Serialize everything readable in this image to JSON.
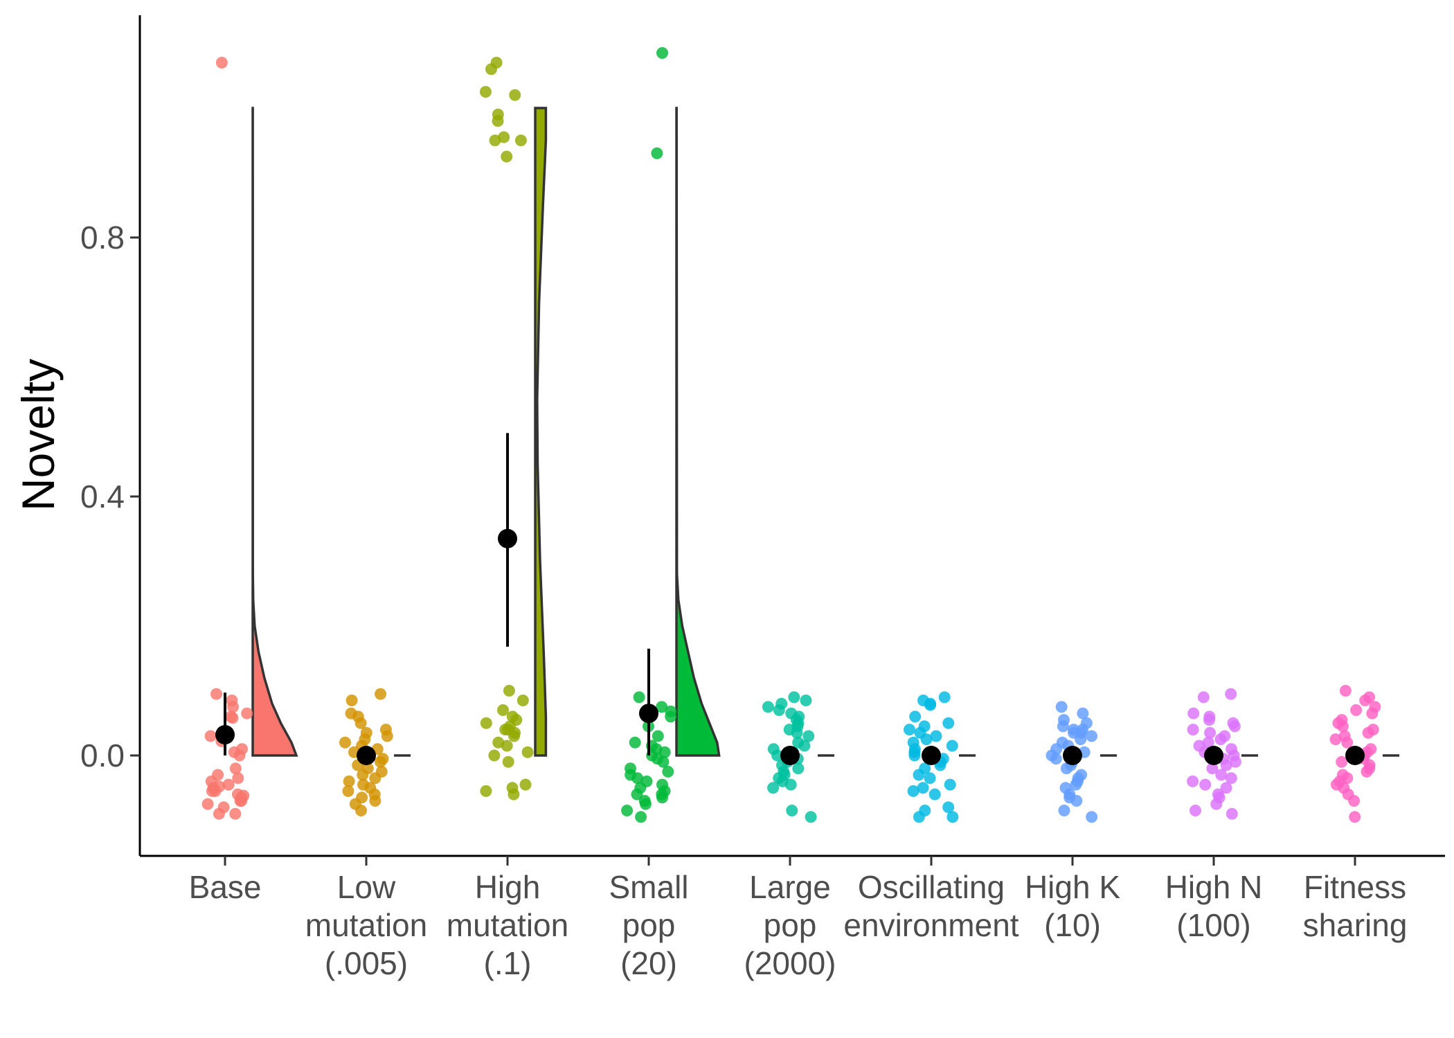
{
  "chart_data": {
    "type": "raincloud",
    "title": "",
    "xlabel": "",
    "ylabel": "Novelty",
    "ylim": [
      -0.15,
      1.15
    ],
    "yticks": [
      0.0,
      0.4,
      0.8
    ],
    "ytick_labels": [
      "0.0",
      "0.4",
      "0.8"
    ],
    "grid": false,
    "legend": "none",
    "categories": [
      {
        "label_lines": [
          "Base"
        ],
        "color": "#F8766D",
        "mean": 0.032,
        "ci": [
          0.0,
          0.097
        ],
        "points": [
          0.085,
          0.095,
          0.06,
          0.065,
          0.075,
          0.058,
          0.03,
          0.01,
          0.005,
          0.0,
          -0.02,
          -0.03,
          -0.035,
          -0.04,
          -0.045,
          -0.05,
          -0.055,
          -0.06,
          -0.065,
          -0.07,
          -0.075,
          -0.08,
          -0.09,
          -0.09,
          -0.055,
          -0.048,
          -0.062,
          -0.07,
          0.022,
          1.07
        ],
        "density": [
          [
            0.0,
            0.09
          ],
          [
            0.02,
            0.08
          ],
          [
            0.05,
            0.058
          ],
          [
            0.08,
            0.04
          ],
          [
            0.12,
            0.024
          ],
          [
            0.16,
            0.012
          ],
          [
            0.2,
            0.004
          ],
          [
            0.24,
            0.001
          ],
          [
            0.28,
            0.0003
          ],
          [
            1.0,
            0.0002
          ]
        ]
      },
      {
        "label_lines": [
          "Low",
          "mutation",
          "(.005)"
        ],
        "color": "#D39200",
        "mean": 0.0,
        "ci": [
          0.0,
          0.0
        ],
        "points": [
          0.095,
          0.085,
          0.065,
          0.06,
          0.05,
          0.035,
          0.03,
          0.025,
          0.01,
          0.005,
          0.0,
          -0.005,
          -0.01,
          -0.015,
          -0.02,
          -0.025,
          -0.035,
          -0.04,
          -0.05,
          -0.055,
          -0.06,
          -0.065,
          -0.07,
          -0.075,
          -0.085,
          0.015,
          -0.03,
          0.04,
          -0.045,
          0.02
        ],
        "density": []
      },
      {
        "label_lines": [
          "High",
          "mutation",
          "(.1)"
        ],
        "color": "#93AA00",
        "mean": 0.335,
        "ci": [
          0.168,
          0.498
        ],
        "points": [
          1.07,
          1.06,
          1.02,
          1.025,
          0.99,
          0.98,
          0.955,
          0.95,
          0.95,
          0.925,
          0.1,
          0.085,
          0.06,
          0.055,
          0.05,
          0.045,
          0.04,
          0.04,
          0.035,
          0.02,
          0.015,
          0.005,
          0.0,
          -0.01,
          -0.045,
          -0.05,
          -0.055,
          -0.06,
          0.03,
          0.07
        ],
        "density": [
          [
            0.0,
            0.022
          ],
          [
            0.06,
            0.022
          ],
          [
            0.15,
            0.018
          ],
          [
            0.3,
            0.01
          ],
          [
            0.45,
            0.005
          ],
          [
            0.55,
            0.004
          ],
          [
            0.7,
            0.008
          ],
          [
            0.85,
            0.016
          ],
          [
            0.95,
            0.022
          ],
          [
            1.0,
            0.022
          ]
        ]
      },
      {
        "label_lines": [
          "Small",
          "pop",
          "(20)"
        ],
        "color": "#00BA38",
        "mean": 0.065,
        "ci": [
          0.0,
          0.165
        ],
        "points": [
          1.085,
          0.93,
          0.09,
          0.075,
          0.06,
          0.045,
          0.02,
          0.015,
          0.01,
          0.005,
          0.0,
          -0.005,
          -0.02,
          -0.025,
          -0.03,
          -0.035,
          -0.04,
          -0.045,
          -0.05,
          -0.055,
          -0.06,
          -0.065,
          -0.07,
          -0.075,
          -0.085,
          -0.095,
          0.03,
          -0.01,
          -0.06,
          0.068
        ],
        "density": [
          [
            0.0,
            0.088
          ],
          [
            0.02,
            0.084
          ],
          [
            0.05,
            0.068
          ],
          [
            0.08,
            0.052
          ],
          [
            0.12,
            0.036
          ],
          [
            0.16,
            0.024
          ],
          [
            0.2,
            0.012
          ],
          [
            0.24,
            0.004
          ],
          [
            0.28,
            0.001
          ],
          [
            1.0,
            0.0003
          ]
        ]
      },
      {
        "label_lines": [
          "Large",
          "pop",
          "(2000)"
        ],
        "color": "#00C19F",
        "mean": 0.0,
        "ci": [
          0.0,
          0.0
        ],
        "points": [
          0.09,
          0.085,
          0.08,
          0.075,
          0.07,
          0.065,
          0.055,
          0.05,
          0.045,
          0.04,
          0.035,
          0.03,
          0.02,
          0.01,
          0.005,
          0.0,
          -0.005,
          -0.01,
          -0.015,
          -0.02,
          -0.025,
          -0.03,
          -0.035,
          -0.04,
          -0.05,
          -0.085,
          -0.095,
          0.06,
          -0.045,
          0.015
        ],
        "density": []
      },
      {
        "label_lines": [
          "Oscillating",
          "environment"
        ],
        "color": "#00B9E3",
        "mean": 0.0,
        "ci": [
          0.0,
          0.0
        ],
        "points": [
          0.09,
          0.085,
          0.08,
          0.078,
          0.06,
          0.05,
          0.045,
          0.04,
          0.03,
          0.025,
          0.02,
          0.01,
          0.005,
          0.0,
          -0.005,
          -0.01,
          -0.015,
          -0.02,
          -0.03,
          -0.035,
          -0.045,
          -0.05,
          -0.055,
          -0.08,
          -0.085,
          -0.095,
          -0.095,
          0.035,
          -0.06,
          0.015
        ],
        "density": []
      },
      {
        "label_lines": [
          "High K",
          "(10)"
        ],
        "color": "#619CFF",
        "mean": 0.0,
        "ci": [
          0.0,
          0.0
        ],
        "points": [
          0.075,
          0.065,
          0.055,
          0.05,
          0.045,
          0.04,
          0.04,
          0.035,
          0.035,
          0.025,
          0.02,
          0.01,
          0.005,
          0.0,
          -0.005,
          -0.01,
          -0.015,
          -0.02,
          -0.03,
          -0.035,
          -0.045,
          -0.05,
          -0.06,
          -0.065,
          -0.07,
          -0.085,
          -0.095,
          0.03,
          -0.04,
          0.015
        ],
        "density": []
      },
      {
        "label_lines": [
          "High N",
          "(100)"
        ],
        "color": "#DB72FB",
        "mean": 0.0,
        "ci": [
          0.0,
          0.0
        ],
        "points": [
          0.095,
          0.09,
          0.065,
          0.06,
          0.055,
          0.05,
          0.045,
          0.04,
          0.035,
          0.02,
          0.015,
          0.01,
          0.005,
          0.0,
          -0.005,
          -0.01,
          -0.015,
          -0.02,
          -0.03,
          -0.035,
          -0.045,
          -0.05,
          -0.06,
          -0.065,
          -0.075,
          -0.085,
          -0.09,
          0.03,
          -0.04,
          0.025
        ],
        "density": []
      },
      {
        "label_lines": [
          "Fitness",
          "sharing"
        ],
        "color": "#FF61C3",
        "mean": 0.0,
        "ci": [
          0.0,
          0.0
        ],
        "points": [
          0.1,
          0.09,
          0.085,
          0.075,
          0.07,
          0.065,
          0.055,
          0.05,
          0.045,
          0.04,
          0.035,
          0.03,
          0.02,
          0.01,
          0.005,
          0.0,
          -0.005,
          -0.01,
          -0.015,
          -0.02,
          -0.025,
          -0.03,
          -0.04,
          -0.045,
          -0.05,
          -0.06,
          -0.07,
          -0.095,
          0.025,
          -0.035
        ],
        "density": []
      }
    ]
  }
}
